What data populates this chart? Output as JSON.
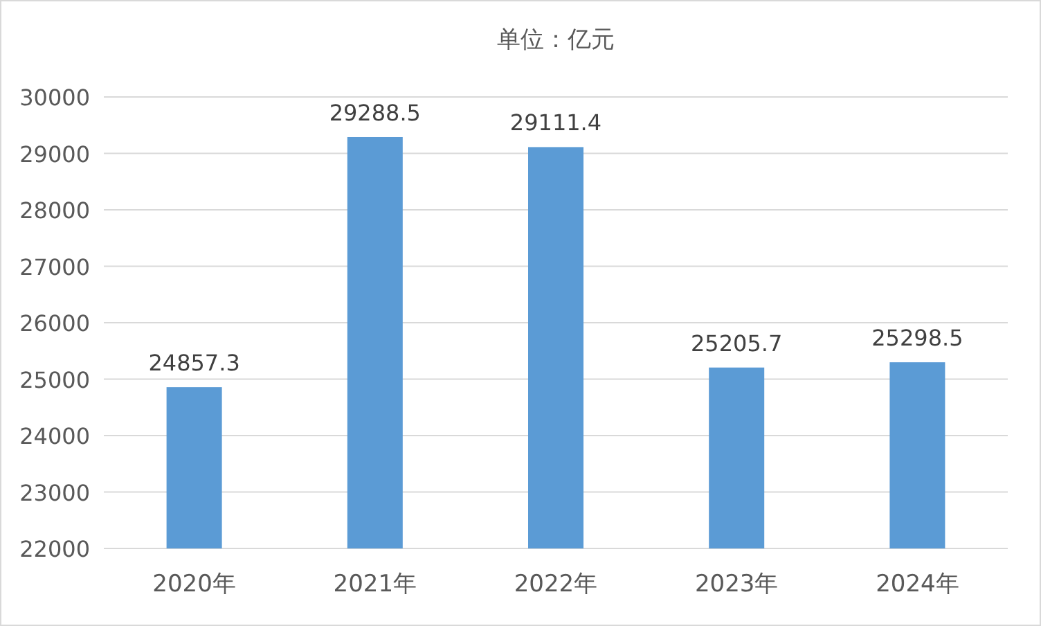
{
  "chart_data": {
    "type": "bar",
    "title": "单位：亿元",
    "categories": [
      "2020年",
      "2021年",
      "2022年",
      "2023年",
      "2024年"
    ],
    "values": [
      24857.3,
      29288.5,
      29111.4,
      25205.7,
      25298.5
    ],
    "color": "#5b9bd5",
    "ylim": [
      22000,
      30000
    ],
    "yticks": [
      22000,
      23000,
      24000,
      25000,
      26000,
      27000,
      28000,
      29000,
      30000
    ],
    "grid": "y",
    "data_labels": true
  }
}
